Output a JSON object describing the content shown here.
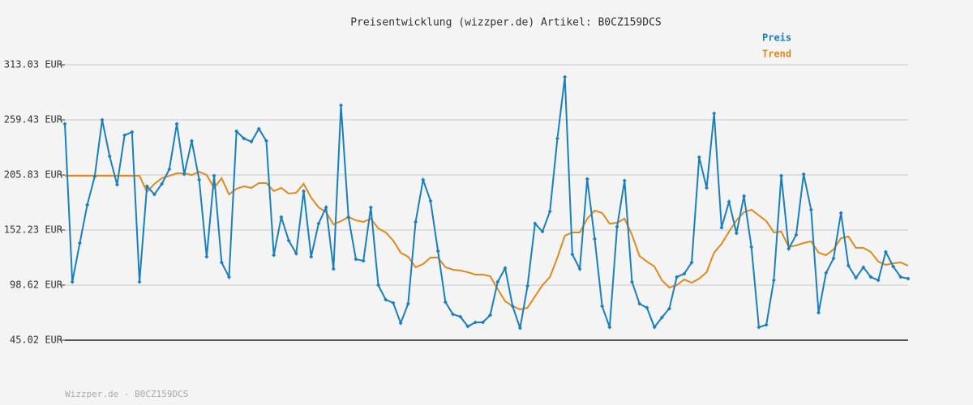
{
  "chart_data": {
    "type": "line",
    "title": "Preisentwicklung (wizzper.de) Artikel: B0CZ159DCS",
    "footer": "Wizzper.de - B0CZ159DCS",
    "ylim": [
      45.02,
      313.03
    ],
    "yticks": [
      {
        "value": 45.02,
        "label": "45.02 EUR"
      },
      {
        "value": 98.62,
        "label": "98.62 EUR"
      },
      {
        "value": 152.23,
        "label": "152.23 EUR"
      },
      {
        "value": 205.83,
        "label": "205.83 EUR"
      },
      {
        "value": 259.43,
        "label": "259.43 EUR"
      },
      {
        "value": 313.03,
        "label": "313.03 EUR"
      }
    ],
    "grid": true,
    "legend": "top-right",
    "series": [
      {
        "name": "Preis",
        "color": "#1a7fbf",
        "markers": true,
        "values": [
          255.5,
          101.8,
          139.6,
          176.7,
          204.3,
          259.4,
          224.0,
          196.4,
          244.5,
          247.6,
          101.8,
          194.8,
          186.9,
          197.2,
          211.4,
          255.5,
          206.6,
          238.9,
          201.1,
          126.2,
          205.0,
          120.7,
          106.5,
          248.4,
          241.3,
          238.2,
          250.8,
          238.9,
          127.8,
          164.8,
          142.0,
          129.4,
          190.1,
          126.2,
          158.5,
          174.3,
          114.4,
          273.6,
          164.8,
          123.8,
          122.3,
          174.3,
          98.6,
          84.4,
          81.3,
          61.6,
          80.5,
          160.1,
          201.1,
          180.6,
          131.7,
          82.1,
          70.2,
          67.9,
          58.4,
          62.4,
          62.4,
          69.5,
          101.8,
          115.2,
          78.1,
          56.8,
          97.8,
          158.5,
          150.7,
          170.4,
          241.3,
          301.2,
          128.6,
          114.4,
          201.9,
          143.6,
          78.1,
          57.6,
          155.4,
          200.3,
          101.8,
          80.5,
          76.6,
          57.6,
          67.1,
          75.8,
          106.5,
          109.7,
          120.7,
          223.2,
          193.2,
          265.7,
          154.6,
          179.8,
          149.1,
          185.3,
          135.7,
          57.6,
          60.0,
          103.4,
          205.0,
          134.1,
          147.5,
          206.6,
          171.9,
          71.8,
          110.4,
          124.6,
          168.8,
          117.5,
          105.7,
          116.0,
          106.5,
          103.4,
          130.9,
          116.8,
          106.5,
          104.9
        ]
      },
      {
        "name": "Trend",
        "color": "#e08a1e",
        "markers": false,
        "values": [
          205.0,
          205.0,
          205.0,
          205.0,
          205.0,
          205.0,
          205.0,
          205.0,
          205.0,
          205.0,
          205.0,
          189.3,
          197.2,
          202.7,
          205.0,
          207.4,
          207.4,
          205.8,
          209.0,
          205.8,
          193.2,
          202.7,
          186.9,
          192.4,
          194.8,
          193.2,
          197.9,
          197.9,
          190.1,
          193.2,
          187.7,
          188.5,
          197.2,
          183.8,
          174.3,
          169.6,
          157.7,
          160.9,
          164.8,
          161.7,
          160.1,
          163.3,
          153.8,
          149.9,
          142.0,
          130.2,
          126.2,
          116.0,
          119.1,
          125.4,
          125.4,
          116.0,
          113.6,
          112.8,
          111.2,
          108.9,
          108.9,
          107.3,
          94.7,
          82.9,
          78.1,
          75.0,
          76.6,
          87.6,
          98.6,
          106.5,
          125.4,
          146.7,
          149.9,
          149.9,
          163.3,
          171.1,
          168.8,
          158.5,
          159.3,
          163.3,
          147.5,
          127.0,
          121.5,
          116.8,
          103.4,
          96.3,
          98.6,
          104.1,
          101.0,
          104.9,
          111.2,
          130.2,
          138.8,
          150.7,
          161.7,
          169.6,
          172.0,
          166.4,
          160.9,
          149.9,
          150.7,
          135.7,
          137.3,
          139.6,
          141.2,
          130.2,
          127.8,
          133.3,
          144.3,
          145.9,
          134.9,
          134.9,
          130.9,
          121.5,
          118.3,
          119.9,
          120.7,
          117.5
        ]
      }
    ]
  }
}
